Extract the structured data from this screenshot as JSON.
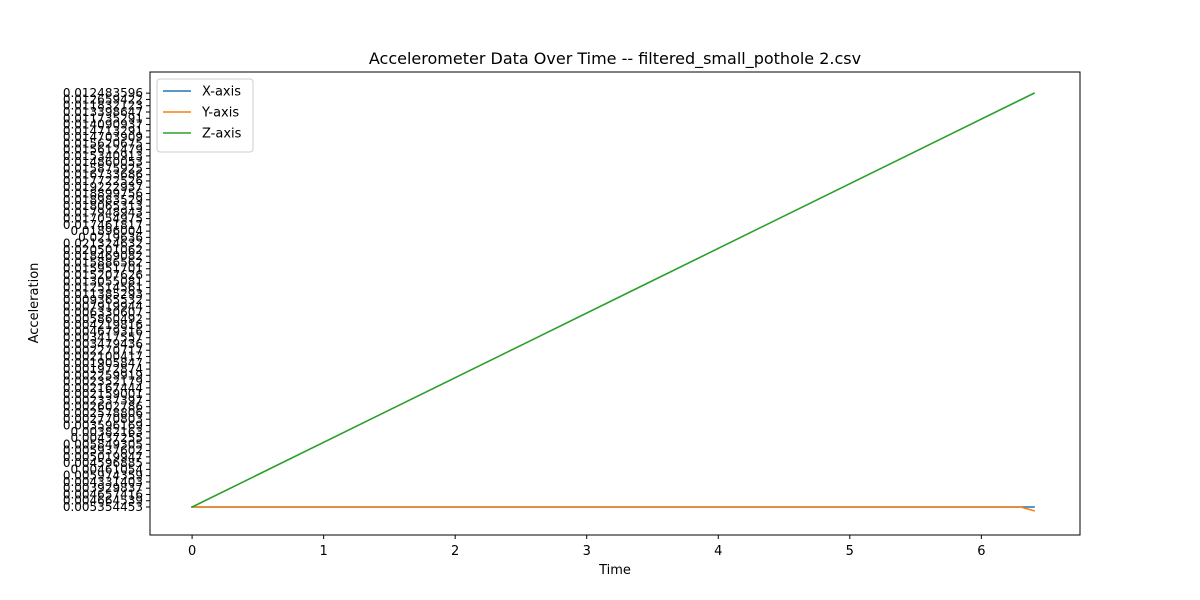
{
  "chart_data": {
    "type": "line",
    "title": "Accelerometer Data Over Time -- filtered_small_pothole 2.csv",
    "xlabel": "Time",
    "ylabel": "Acceleration",
    "xlim": [
      -0.32,
      6.75
    ],
    "x_ticks": [
      0,
      1,
      2,
      3,
      4,
      5,
      6
    ],
    "y_axis_kind": "categorical",
    "y_categories": [
      "0.005354453",
      "0.004664539",
      "0.004657416",
      "0.003929837",
      "0.004331403",
      "0.005974359",
      "0.00461054",
      "0.004596885",
      "0.005019947",
      "0.005937602",
      "0.005849305",
      "0.00437255",
      "0.00382163",
      "0.003596169",
      "0.002770803",
      "0.002578806",
      "0.002602786",
      "0.002337397",
      "0.002159001",
      "0.002167444",
      "0.002352179",
      "0.002259919",
      "0.001972874",
      "0.001905847",
      "0.002100417",
      "0.002270717",
      "0.003479436",
      "0.003417557",
      "0.004679316",
      "0.004219816",
      "0.005860492",
      "0.006330607",
      "0.007919944",
      "0.009365532",
      "0.011385293",
      "0.012514561",
      "0.013055081",
      "0.015207626",
      "0.015951701",
      "0.015886562",
      "0.018469082",
      "0.020501062",
      "0.021324632",
      "0.0219636",
      "0.01896004",
      "0.017461817",
      "0.017054975",
      "0.017948943",
      "0.018065313",
      "0.018983529",
      "0.018899756",
      "0.019222937",
      "0.017722526",
      "0.016733686",
      "0.015875925",
      "0.014860053",
      "0.015340913",
      "0.015612479",
      "0.015620675",
      "0.014703909",
      "0.014713291",
      "0.014090937",
      "0.011735291",
      "0.013398647",
      "0.011832123",
      "0.012659422",
      "0.012483596"
    ],
    "series": [
      {
        "name": "X-axis",
        "color": "#1f77b4",
        "points": [
          [
            0,
            0
          ],
          [
            6.4,
            0
          ]
        ]
      },
      {
        "name": "Y-axis",
        "color": "#ff7f0e",
        "points": [
          [
            0,
            0
          ],
          [
            6.3,
            0
          ],
          [
            6.4,
            -0.6
          ]
        ]
      },
      {
        "name": "Z-axis",
        "color": "#2ca02c",
        "points": [
          [
            0,
            0
          ],
          [
            6.4,
            66
          ]
        ]
      }
    ],
    "legend_position": "top-left",
    "grid": false
  }
}
